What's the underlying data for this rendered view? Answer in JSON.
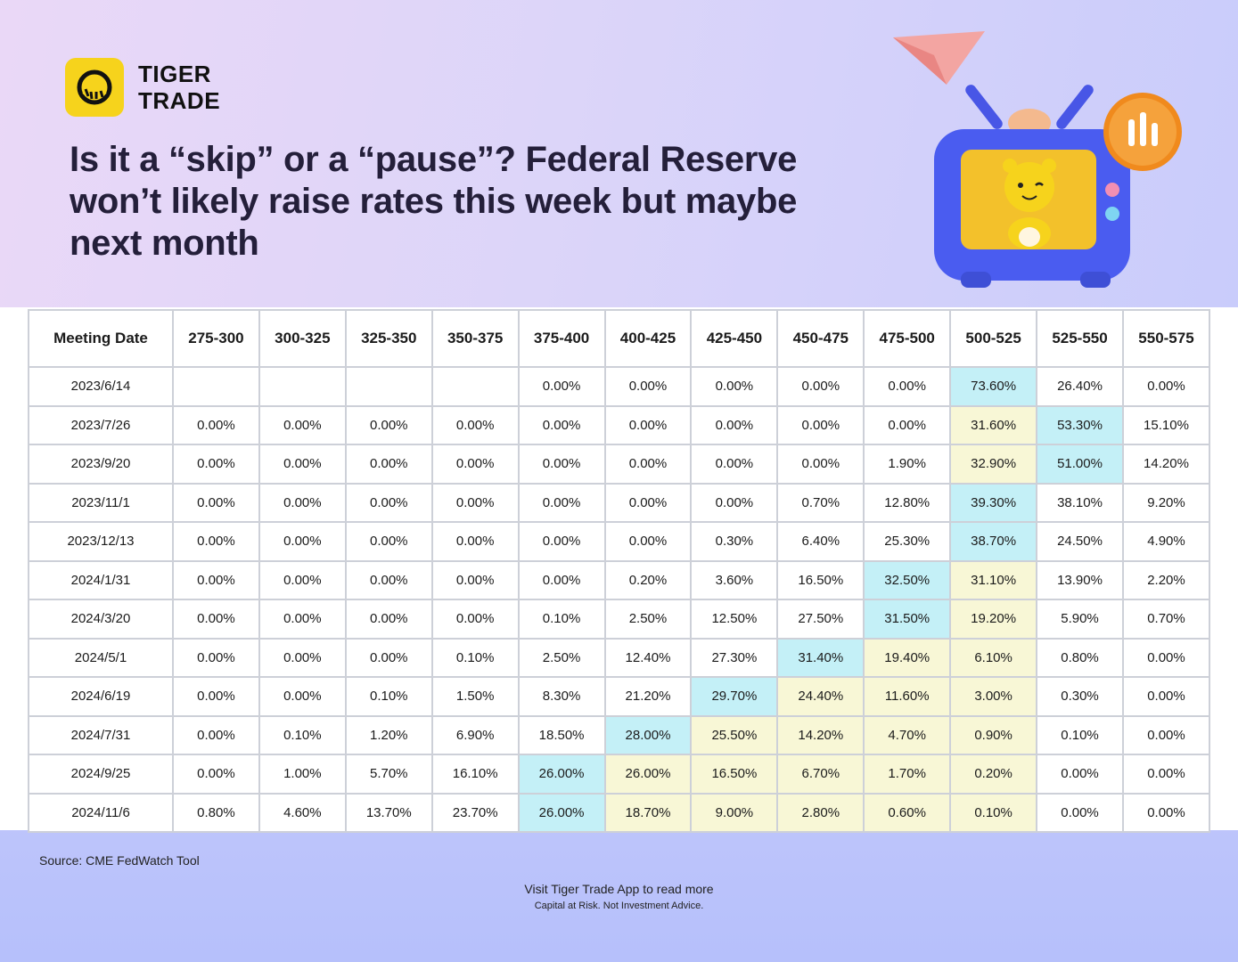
{
  "brand": {
    "line1": "TIGER",
    "line2": "TRADE",
    "accent": "#f6d31c"
  },
  "headline": "Is it a “skip” or a “pause”? Federal Reserve won’t likely raise rates this week but maybe next month",
  "colors": {
    "highlight_max": "#c4f0f7",
    "highlight_alt": "#f8f7d6",
    "border": "#cdd0d8"
  },
  "chart_data": {
    "type": "table",
    "title": "Is it a “skip” or a “pause”? Federal Reserve won’t likely raise rates this week but maybe next month",
    "columns": [
      "Meeting Date",
      "275-300",
      "300-325",
      "325-350",
      "350-375",
      "375-400",
      "400-425",
      "425-450",
      "450-475",
      "475-500",
      "500-525",
      "525-550",
      "550-575"
    ],
    "rows": [
      {
        "date": "2023/6/14",
        "values": [
          "",
          "",
          "",
          "",
          "0.00%",
          "0.00%",
          "0.00%",
          "0.00%",
          "0.00%",
          "73.60%",
          "26.40%",
          "0.00%"
        ],
        "cyan": [
          9
        ],
        "yellow": []
      },
      {
        "date": "2023/7/26",
        "values": [
          "0.00%",
          "0.00%",
          "0.00%",
          "0.00%",
          "0.00%",
          "0.00%",
          "0.00%",
          "0.00%",
          "0.00%",
          "31.60%",
          "53.30%",
          "15.10%"
        ],
        "cyan": [
          10
        ],
        "yellow": [
          9
        ]
      },
      {
        "date": "2023/9/20",
        "values": [
          "0.00%",
          "0.00%",
          "0.00%",
          "0.00%",
          "0.00%",
          "0.00%",
          "0.00%",
          "0.00%",
          "1.90%",
          "32.90%",
          "51.00%",
          "14.20%"
        ],
        "cyan": [
          10
        ],
        "yellow": [
          9
        ]
      },
      {
        "date": "2023/11/1",
        "values": [
          "0.00%",
          "0.00%",
          "0.00%",
          "0.00%",
          "0.00%",
          "0.00%",
          "0.00%",
          "0.70%",
          "12.80%",
          "39.30%",
          "38.10%",
          "9.20%"
        ],
        "cyan": [
          9
        ],
        "yellow": []
      },
      {
        "date": "2023/12/13",
        "values": [
          "0.00%",
          "0.00%",
          "0.00%",
          "0.00%",
          "0.00%",
          "0.00%",
          "0.30%",
          "6.40%",
          "25.30%",
          "38.70%",
          "24.50%",
          "4.90%"
        ],
        "cyan": [
          9
        ],
        "yellow": []
      },
      {
        "date": "2024/1/31",
        "values": [
          "0.00%",
          "0.00%",
          "0.00%",
          "0.00%",
          "0.00%",
          "0.20%",
          "3.60%",
          "16.50%",
          "32.50%",
          "31.10%",
          "13.90%",
          "2.20%"
        ],
        "cyan": [
          8
        ],
        "yellow": [
          9
        ]
      },
      {
        "date": "2024/3/20",
        "values": [
          "0.00%",
          "0.00%",
          "0.00%",
          "0.00%",
          "0.10%",
          "2.50%",
          "12.50%",
          "27.50%",
          "31.50%",
          "19.20%",
          "5.90%",
          "0.70%"
        ],
        "cyan": [
          8
        ],
        "yellow": [
          9
        ]
      },
      {
        "date": "2024/5/1",
        "values": [
          "0.00%",
          "0.00%",
          "0.00%",
          "0.10%",
          "2.50%",
          "12.40%",
          "27.30%",
          "31.40%",
          "19.40%",
          "6.10%",
          "0.80%",
          "0.00%"
        ],
        "cyan": [
          7
        ],
        "yellow": [
          8,
          9
        ]
      },
      {
        "date": "2024/6/19",
        "values": [
          "0.00%",
          "0.00%",
          "0.10%",
          "1.50%",
          "8.30%",
          "21.20%",
          "29.70%",
          "24.40%",
          "11.60%",
          "3.00%",
          "0.30%",
          "0.00%"
        ],
        "cyan": [
          6
        ],
        "yellow": [
          7,
          8,
          9
        ]
      },
      {
        "date": "2024/7/31",
        "values": [
          "0.00%",
          "0.10%",
          "1.20%",
          "6.90%",
          "18.50%",
          "28.00%",
          "25.50%",
          "14.20%",
          "4.70%",
          "0.90%",
          "0.10%",
          "0.00%"
        ],
        "cyan": [
          5
        ],
        "yellow": [
          6,
          7,
          8,
          9
        ]
      },
      {
        "date": "2024/9/25",
        "values": [
          "0.00%",
          "1.00%",
          "5.70%",
          "16.10%",
          "26.00%",
          "26.00%",
          "16.50%",
          "6.70%",
          "1.70%",
          "0.20%",
          "0.00%",
          "0.00%"
        ],
        "cyan": [
          4
        ],
        "yellow": [
          5,
          6,
          7,
          8,
          9
        ]
      },
      {
        "date": "2024/11/6",
        "values": [
          "0.80%",
          "4.60%",
          "13.70%",
          "23.70%",
          "26.00%",
          "18.70%",
          "9.00%",
          "2.80%",
          "0.60%",
          "0.10%",
          "0.00%",
          "0.00%"
        ],
        "cyan": [
          4
        ],
        "yellow": [
          5,
          6,
          7,
          8,
          9
        ]
      }
    ]
  },
  "source": "Source: CME FedWatch Tool",
  "footer": {
    "cta": "Visit Tiger Trade App to read more",
    "note": "Capital at Risk. Not Investment Advice."
  }
}
